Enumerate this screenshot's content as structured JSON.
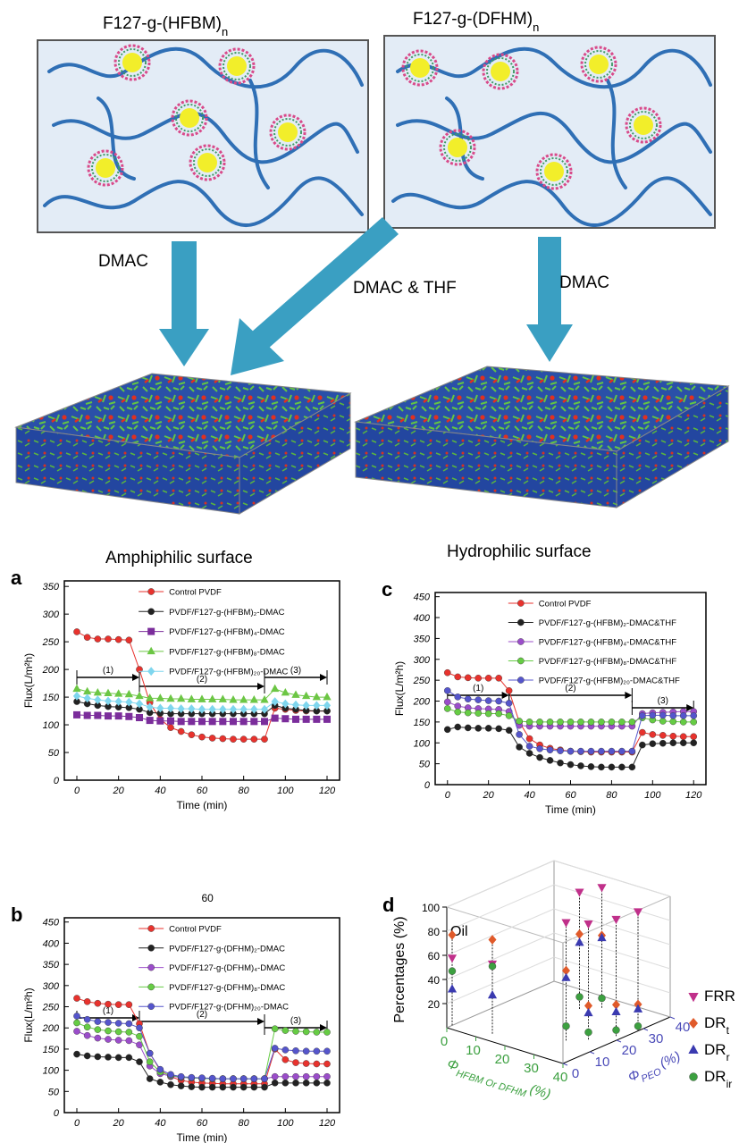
{
  "schematic": {
    "left_title": {
      "text": "F127-g-(HFBM)",
      "sub": "n"
    },
    "right_title": {
      "text": "F127-g-(DFHM)",
      "sub": "n"
    },
    "arrows": [
      "DMAC",
      "DMAC & THF",
      "DMAC"
    ],
    "surfaces": [
      "Amphiphilic surface",
      "Hydrophilic surface"
    ]
  },
  "chart_data": [
    {
      "type": "line",
      "panel_label": "a",
      "xlabel": "Time (min)",
      "ylabel": "Flux(L/m²h)",
      "xlim": [
        -6,
        126
      ],
      "xticks": [
        0,
        20,
        40,
        60,
        80,
        100,
        120
      ],
      "ylim": [
        0,
        360
      ],
      "yticks": [
        0,
        50,
        100,
        150,
        200,
        250,
        300,
        350
      ],
      "legend": "upper right",
      "x": [
        0,
        5,
        10,
        15,
        20,
        25,
        30,
        35,
        40,
        45,
        50,
        55,
        60,
        65,
        70,
        75,
        80,
        85,
        90,
        95,
        100,
        105,
        110,
        115,
        120
      ],
      "phases": [
        {
          "label": "(1)",
          "start": 0,
          "end": 30
        },
        {
          "label": "(2)",
          "start": 30,
          "end": 90
        },
        {
          "label": "(3)",
          "start": 90,
          "end": 120
        }
      ],
      "series": [
        {
          "name": "Control PVDF",
          "color": "#e8322d",
          "marker": "circle",
          "values": [
            268,
            258,
            255,
            255,
            254,
            253,
            200,
            140,
            110,
            95,
            88,
            82,
            78,
            76,
            75,
            74,
            74,
            74,
            74,
            130,
            128,
            126,
            125,
            125,
            125
          ]
        },
        {
          "name": "PVDF/F127-g-(HFBM)₂-DMAC",
          "color": "#222222",
          "marker": "circle",
          "values": [
            142,
            138,
            135,
            133,
            132,
            131,
            128,
            122,
            121,
            120,
            120,
            120,
            120,
            120,
            120,
            120,
            120,
            120,
            120,
            135,
            130,
            128,
            126,
            125,
            125
          ]
        },
        {
          "name": "PVDF/F127-g-(HFBM)₄-DMAC",
          "color": "#7b2d9b",
          "marker": "square",
          "values": [
            118,
            117,
            117,
            116,
            116,
            115,
            113,
            108,
            107,
            107,
            106,
            106,
            106,
            106,
            106,
            106,
            106,
            106,
            106,
            112,
            111,
            110,
            110,
            110,
            110
          ]
        },
        {
          "name": "PVDF/F127-g-(HFBM)₈-DMAC",
          "color": "#6cc644",
          "marker": "triangle",
          "values": [
            165,
            160,
            158,
            157,
            156,
            155,
            152,
            148,
            148,
            147,
            147,
            146,
            146,
            146,
            146,
            145,
            145,
            145,
            145,
            165,
            158,
            154,
            152,
            150,
            150
          ]
        },
        {
          "name": "PVDF/F127-g-(HFBM)₂₀-DMAC",
          "color": "#7fd6ee",
          "marker": "diamond",
          "values": [
            152,
            148,
            145,
            143,
            142,
            141,
            138,
            132,
            130,
            130,
            129,
            129,
            128,
            128,
            128,
            128,
            128,
            128,
            128,
            142,
            138,
            136,
            135,
            135,
            135
          ]
        }
      ]
    },
    {
      "type": "line",
      "panel_label": "b",
      "annotation": "60",
      "xlabel": "Time (min)",
      "ylabel": "Flux(L/m²h)",
      "xlim": [
        -6,
        126
      ],
      "xticks": [
        0,
        20,
        40,
        60,
        80,
        100,
        120
      ],
      "ylim": [
        0,
        460
      ],
      "yticks": [
        0,
        50,
        100,
        150,
        200,
        250,
        300,
        350,
        400,
        450
      ],
      "legend": "upper right",
      "x": [
        0,
        5,
        10,
        15,
        20,
        25,
        30,
        35,
        40,
        45,
        50,
        55,
        60,
        65,
        70,
        75,
        80,
        85,
        90,
        95,
        100,
        105,
        110,
        115,
        120
      ],
      "phases": [
        {
          "label": "(1)",
          "start": 0,
          "end": 30
        },
        {
          "label": "(2)",
          "start": 30,
          "end": 90
        },
        {
          "label": "(3)",
          "start": 90,
          "end": 120
        }
      ],
      "series": [
        {
          "name": "Control PVDF",
          "color": "#e8322d",
          "marker": "circle",
          "values": [
            270,
            262,
            258,
            256,
            255,
            255,
            210,
            140,
            100,
            85,
            76,
            72,
            70,
            69,
            68,
            68,
            68,
            68,
            68,
            150,
            125,
            118,
            116,
            115,
            115
          ]
        },
        {
          "name": "PVDF/F127-g-(DFHM)₂-DMAC",
          "color": "#222222",
          "marker": "circle",
          "values": [
            138,
            134,
            132,
            131,
            130,
            130,
            120,
            80,
            72,
            66,
            63,
            61,
            60,
            60,
            60,
            60,
            60,
            60,
            60,
            70,
            70,
            70,
            70,
            70,
            70
          ]
        },
        {
          "name": "PVDF/F127-g-(DFHM)₄-DMAC",
          "color": "#9b4dca",
          "marker": "circle",
          "values": [
            192,
            182,
            176,
            173,
            171,
            170,
            160,
            110,
            92,
            86,
            83,
            82,
            81,
            80,
            80,
            80,
            80,
            80,
            80,
            85,
            85,
            85,
            85,
            85,
            85
          ]
        },
        {
          "name": "PVDF/F127-g-(DFHM)₈-DMAC",
          "color": "#66cc44",
          "marker": "circle",
          "values": [
            212,
            202,
            196,
            193,
            191,
            190,
            180,
            120,
            96,
            88,
            84,
            82,
            81,
            80,
            80,
            80,
            80,
            80,
            80,
            198,
            194,
            192,
            191,
            190,
            190
          ]
        },
        {
          "name": "PVDF/F127-g-(DFHM)₂₀-DMAC",
          "color": "#5555cc",
          "marker": "circle",
          "values": [
            228,
            220,
            215,
            213,
            211,
            210,
            200,
            140,
            102,
            90,
            85,
            83,
            82,
            81,
            80,
            80,
            80,
            80,
            80,
            152,
            148,
            146,
            145,
            145,
            145
          ]
        }
      ]
    },
    {
      "type": "line",
      "panel_label": "c",
      "xlabel": "Time (min)",
      "ylabel": "Flux(L/m²h)",
      "xlim": [
        -6,
        126
      ],
      "xticks": [
        0,
        20,
        40,
        60,
        80,
        100,
        120
      ],
      "ylim": [
        0,
        460
      ],
      "yticks": [
        0,
        50,
        100,
        150,
        200,
        250,
        300,
        350,
        400,
        450
      ],
      "legend": "upper right",
      "x": [
        0,
        5,
        10,
        15,
        20,
        25,
        30,
        35,
        40,
        45,
        50,
        55,
        60,
        65,
        70,
        75,
        80,
        85,
        90,
        95,
        100,
        105,
        110,
        115,
        120
      ],
      "phases": [
        {
          "label": "(1)",
          "start": 0,
          "end": 30
        },
        {
          "label": "(2)",
          "start": 30,
          "end": 90
        },
        {
          "label": "(3)",
          "start": 90,
          "end": 120
        }
      ],
      "series": [
        {
          "name": "Control PVDF",
          "color": "#e8322d",
          "marker": "circle",
          "values": [
            268,
            258,
            256,
            255,
            255,
            255,
            225,
            150,
            110,
            95,
            87,
            83,
            80,
            79,
            78,
            78,
            78,
            78,
            78,
            125,
            120,
            118,
            116,
            115,
            115
          ]
        },
        {
          "name": "PVDF/F127-g-(HFBM)₂-DMAC&THF",
          "color": "#222222",
          "marker": "circle",
          "values": [
            132,
            138,
            136,
            135,
            135,
            134,
            130,
            90,
            75,
            65,
            58,
            52,
            48,
            45,
            43,
            42,
            42,
            42,
            42,
            95,
            98,
            99,
            100,
            100,
            100
          ]
        },
        {
          "name": "PVDF/F127-g-(HFBM)₄-DMAC&THF",
          "color": "#9b4dca",
          "marker": "circle",
          "values": [
            198,
            188,
            184,
            182,
            181,
            180,
            175,
            142,
            140,
            140,
            140,
            140,
            140,
            140,
            140,
            140,
            140,
            140,
            140,
            170,
            172,
            173,
            174,
            175,
            175
          ]
        },
        {
          "name": "PVDF/F127-g-(HFBM)₈-DMAC&THF",
          "color": "#66cc44",
          "marker": "circle",
          "values": [
            182,
            174,
            172,
            171,
            170,
            170,
            165,
            152,
            150,
            150,
            150,
            150,
            150,
            150,
            150,
            150,
            150,
            150,
            150,
            160,
            155,
            152,
            151,
            150,
            150
          ]
        },
        {
          "name": "PVDF/F127-g-(HFBM)₂₀-DMAC&THF",
          "color": "#5555cc",
          "marker": "circle",
          "values": [
            225,
            210,
            205,
            203,
            201,
            200,
            195,
            120,
            92,
            86,
            83,
            81,
            80,
            80,
            80,
            80,
            80,
            80,
            80,
            165,
            166,
            166,
            165,
            165,
            165
          ]
        }
      ]
    },
    {
      "type": "scatter3d",
      "panel_label": "d",
      "annotation": "Oil",
      "ylabel": "Percentages (%)",
      "xlabel": {
        "symbol": "Φ",
        "sub": "HFBM Or DFHM",
        "unit": "(%)"
      },
      "zlabel": {
        "symbol": "Φ",
        "sub": "PEO",
        "unit": "(%)"
      },
      "xlim": [
        0,
        40
      ],
      "xticks": [
        0,
        10,
        20,
        30,
        40
      ],
      "zlim": [
        0,
        40
      ],
      "zticks": [
        0,
        10,
        20,
        30,
        40
      ],
      "ylim": [
        0,
        100
      ],
      "yticks": [
        20,
        40,
        60,
        80,
        100
      ],
      "x": [
        0,
        12,
        18,
        22,
        30,
        34,
        38,
        40
      ],
      "z": [
        2,
        4,
        30,
        34,
        12,
        16,
        22,
        28
      ],
      "series": [
        {
          "name": "FRR",
          "sub": "",
          "color": "#c0308a",
          "marker": "tri-down",
          "values": [
            56,
            58,
            97,
            100,
            98,
            96,
            97,
            99
          ]
        },
        {
          "name": "DR",
          "sub": "t",
          "color": "#e05a2a",
          "marker": "diamond",
          "values": [
            75,
            78,
            62,
            60,
            58,
            28,
            26,
            22
          ]
        },
        {
          "name": "DR",
          "sub": "r",
          "color": "#3a3ab0",
          "marker": "triangle",
          "values": [
            30,
            32,
            55,
            58,
            52,
            22,
            20,
            18
          ]
        },
        {
          "name": "DR",
          "sub": "ir",
          "color": "#3ca040",
          "marker": "circle",
          "values": [
            45,
            56,
            10,
            8,
            12,
            6,
            5,
            4
          ]
        }
      ]
    }
  ]
}
